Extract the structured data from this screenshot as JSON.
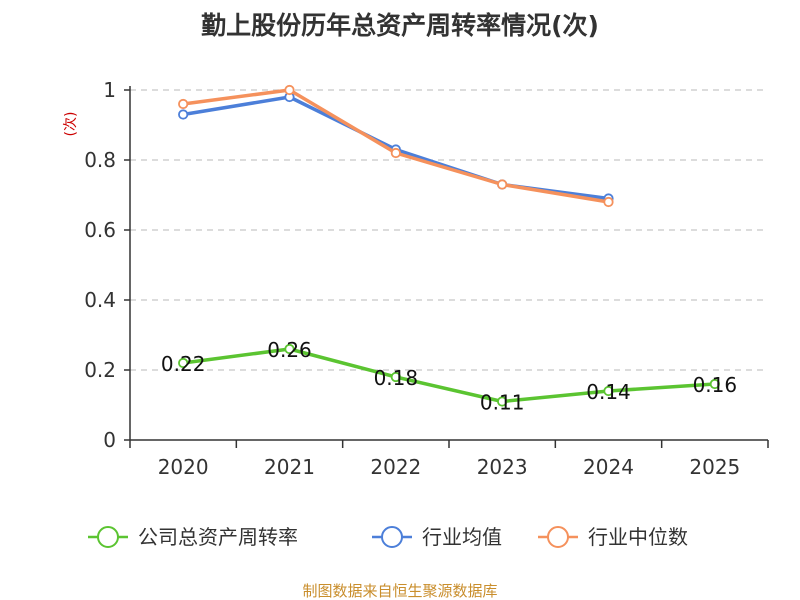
{
  "chart_data": {
    "type": "line",
    "title": "勤上股份历年总资产周转率情况(次)",
    "ylabel": "(次)",
    "categories": [
      "2020",
      "2021",
      "2022",
      "2023",
      "2024",
      "2025"
    ],
    "ylim": [
      0,
      1
    ],
    "yticks": [
      "0",
      "0.2",
      "0.4",
      "0.6",
      "0.8",
      "1"
    ],
    "grid": true,
    "legend_position": "bottom",
    "series": [
      {
        "name": "公司总资产周转率",
        "color": "#5bc431",
        "values": [
          0.22,
          0.26,
          0.18,
          0.11,
          0.14,
          0.16
        ],
        "labels": [
          "0.22",
          "0.26",
          "0.18",
          "0.11",
          "0.14",
          "0.16"
        ]
      },
      {
        "name": "行业均值",
        "color": "#4c7fd9",
        "values": [
          0.93,
          0.98,
          0.83,
          0.73,
          0.69,
          null
        ]
      },
      {
        "name": "行业中位数",
        "color": "#f5915c",
        "values": [
          0.96,
          1.0,
          0.82,
          0.73,
          0.68,
          null
        ]
      }
    ]
  },
  "footer": {
    "source": "制图数据来自恒生聚源数据库"
  }
}
